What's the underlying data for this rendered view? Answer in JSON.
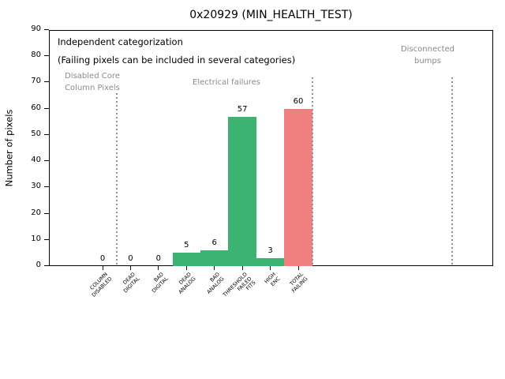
{
  "window": {
    "title": "0x20929 (MIN_HEALTH_TEST)"
  },
  "chart_data": {
    "type": "bar",
    "title": "0x20929 (MIN_HEALTH_TEST)",
    "xlabel": "",
    "ylabel": "Number of pixels",
    "ylim": [
      0,
      90
    ],
    "yticks": [
      0,
      10,
      20,
      30,
      40,
      50,
      60,
      70,
      80,
      90
    ],
    "grid": false,
    "legend_position": "none",
    "categories": [
      "COLUMN\nDISABLED",
      "DEAD\nDIGITAL",
      "BAD\nDIGITAL",
      "DEAD\nANALOG",
      "BAD\nANALOG",
      "THRESHOLD\nFAILED\nFITS",
      "HIGH\nENC",
      "TOTAL\nFAILING"
    ],
    "values": [
      0,
      0,
      0,
      5,
      6,
      57,
      3,
      60
    ],
    "value_labels": [
      "0",
      "0",
      "0",
      "5",
      "6",
      "57",
      "3",
      "60"
    ],
    "bar_colors": [
      "#3cb371",
      "#3cb371",
      "#3cb371",
      "#3cb371",
      "#3cb371",
      "#3cb371",
      "#3cb371",
      "#f08080"
    ],
    "accent_colors": {
      "pass_green": "#3cb371",
      "fail_red": "#f08080",
      "section_gray": "#8a8a8a"
    },
    "annotations": [
      {
        "text": "Independent categorization",
        "color": "#000000"
      },
      {
        "text": "(Failing pixels can be included in several categories)",
        "color": "#000000"
      }
    ],
    "sections": [
      {
        "label": "Disabled Core\nColumn Pixels"
      },
      {
        "label": "Electrical failures"
      },
      {
        "label": "Disconnected\nbumps"
      }
    ],
    "separator_lines": [
      {
        "x": 0.5,
        "ymax_value": 66
      },
      {
        "x": 7.5,
        "ymax_value": 72
      },
      {
        "x": 12.5,
        "ymax_value": 72
      }
    ]
  }
}
